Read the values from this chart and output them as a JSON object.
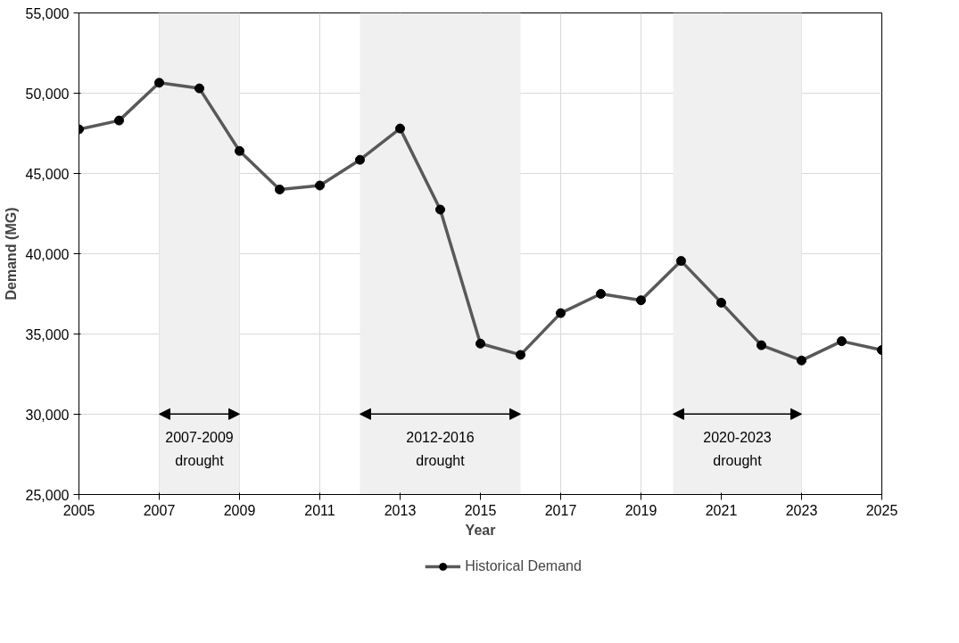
{
  "chart_data": {
    "type": "line",
    "xlabel": "Year",
    "ylabel": "Demand (MG)",
    "x": [
      2005,
      2006,
      2007,
      2008,
      2009,
      2010,
      2011,
      2012,
      2013,
      2014,
      2015,
      2016,
      2017,
      2018,
      2019,
      2020,
      2021,
      2022,
      2023,
      2024,
      2025
    ],
    "series": [
      {
        "name": "Historical Demand",
        "color": "#595959",
        "values": [
          47750,
          48300,
          50650,
          50300,
          46400,
          44000,
          44250,
          45850,
          47800,
          42750,
          34400,
          33700,
          36300,
          37500,
          37100,
          39550,
          36950,
          34300,
          33350,
          34550,
          34000
        ]
      }
    ],
    "xlim": [
      2005,
      2025
    ],
    "xticks": [
      2005,
      2007,
      2009,
      2011,
      2013,
      2015,
      2017,
      2019,
      2021,
      2023,
      2025
    ],
    "ylim": [
      25000,
      55000
    ],
    "yticks": [
      {
        "value": 25000,
        "label": "25,000"
      },
      {
        "value": 30000,
        "label": "30,000"
      },
      {
        "value": 35000,
        "label": "35,000"
      },
      {
        "value": 40000,
        "label": "40,000"
      },
      {
        "value": 45000,
        "label": "45,000"
      },
      {
        "value": 50000,
        "label": "50,000"
      },
      {
        "value": 55000,
        "label": "55,000"
      }
    ],
    "bands": [
      {
        "axis": "x",
        "from": 2007,
        "to": 2009,
        "label": "2007-2009\ndrought",
        "color": "#f0f0f0"
      },
      {
        "axis": "x",
        "from": 2012,
        "to": 2016,
        "label": "2012-2016\ndrought",
        "color": "#f0f0f0"
      },
      {
        "axis": "x",
        "from": 2019.8,
        "to": 2023,
        "label": "2020-2023\ndrought",
        "color": "#f0f0f0"
      }
    ],
    "grid": true,
    "legend": "bottom",
    "marker": "circle",
    "line_style": "solid"
  }
}
